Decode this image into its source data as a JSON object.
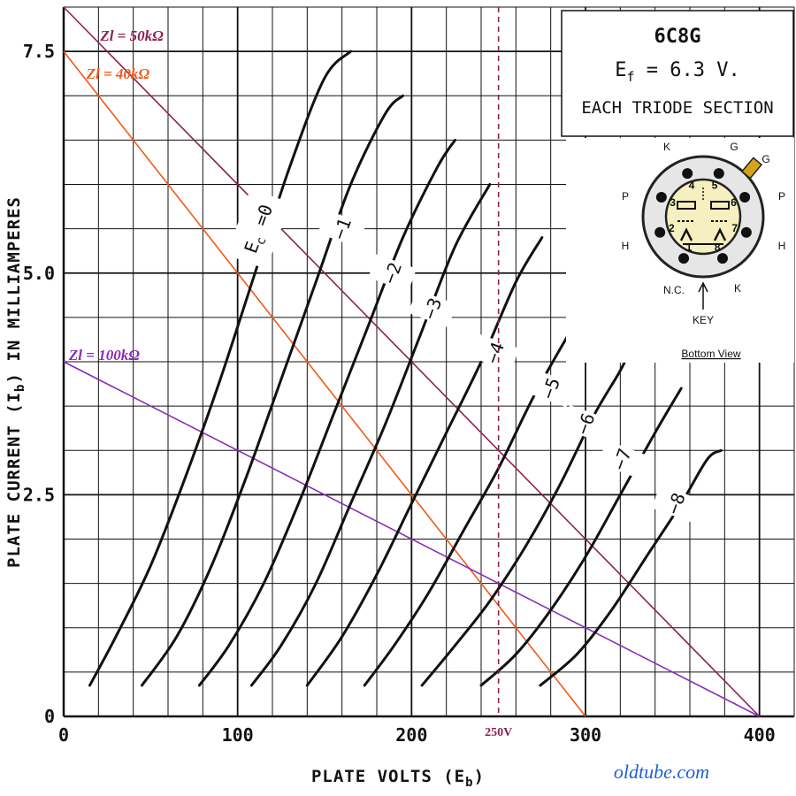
{
  "chart_data": {
    "type": "line",
    "tube": "6C8G",
    "xlabel_main": "PLATE VOLTS (E",
    "xlabel_sub": "b",
    "xlabel_end": ")",
    "ylabel_main": "PLATE CURRENT (I",
    "ylabel_sub": "b",
    "ylabel_end": ") IN MILLIAMPERES",
    "xlim": [
      0,
      420
    ],
    "ylim": [
      0,
      8
    ],
    "x_ticks": [
      "0",
      "100",
      "200",
      "300",
      "400"
    ],
    "x_tick_values": [
      0,
      100,
      200,
      300,
      400
    ],
    "y_ticks": [
      "0",
      "2.5",
      "5.0",
      "7.5"
    ],
    "y_tick_values": [
      0,
      2.5,
      5.0,
      7.5
    ],
    "grid": "on",
    "series": [
      {
        "name": "E_c = 0",
        "x": [
          15,
          30,
          50,
          70,
          90,
          110,
          130,
          150,
          165
        ],
        "y": [
          0.35,
          0.9,
          1.7,
          2.7,
          3.8,
          5.0,
          6.2,
          7.2,
          7.5
        ]
      },
      {
        "name": "-1",
        "x": [
          45,
          65,
          85,
          105,
          125,
          145,
          165,
          185,
          195
        ],
        "y": [
          0.35,
          0.9,
          1.7,
          2.7,
          3.8,
          4.9,
          6.0,
          6.8,
          7.0
        ]
      },
      {
        "name": "-2",
        "x": [
          78,
          95,
          115,
          135,
          155,
          175,
          195,
          215,
          225
        ],
        "y": [
          0.35,
          0.8,
          1.5,
          2.4,
          3.4,
          4.4,
          5.4,
          6.2,
          6.5
        ]
      },
      {
        "name": "-3",
        "x": [
          108,
          125,
          145,
          165,
          185,
          205,
          225,
          245
        ],
        "y": [
          0.35,
          0.8,
          1.5,
          2.4,
          3.3,
          4.3,
          5.3,
          6.0
        ]
      },
      {
        "name": "-4",
        "x": [
          140,
          160,
          180,
          200,
          220,
          240,
          260,
          275
        ],
        "y": [
          0.35,
          0.9,
          1.6,
          2.4,
          3.2,
          4.0,
          4.9,
          5.4
        ]
      },
      {
        "name": "-5",
        "x": [
          173,
          190,
          210,
          230,
          250,
          270,
          290,
          305
        ],
        "y": [
          0.35,
          0.8,
          1.4,
          2.1,
          2.8,
          3.6,
          4.3,
          4.8
        ]
      },
      {
        "name": "-6",
        "x": [
          206,
          225,
          245,
          265,
          285,
          305,
          320,
          330
        ],
        "y": [
          0.35,
          0.8,
          1.3,
          1.9,
          2.6,
          3.4,
          3.9,
          4.3
        ]
      },
      {
        "name": "-7",
        "x": [
          240,
          260,
          280,
          300,
          320,
          340,
          355
        ],
        "y": [
          0.35,
          0.7,
          1.2,
          1.8,
          2.5,
          3.2,
          3.7
        ]
      },
      {
        "name": "-8",
        "x": [
          274,
          295,
          315,
          335,
          355,
          370,
          378
        ],
        "y": [
          0.35,
          0.7,
          1.2,
          1.8,
          2.4,
          2.9,
          3.0
        ]
      }
    ],
    "curve_labels": [
      {
        "text": "E",
        "sub": "c",
        "rest": " =0",
        "x": 112,
        "y": 5.5
      },
      {
        "text": "−1",
        "x": 160,
        "y": 5.5
      },
      {
        "text": "−2",
        "x": 189,
        "y": 5.0
      },
      {
        "text": "−3",
        "x": 212,
        "y": 4.6
      },
      {
        "text": "−4",
        "x": 248,
        "y": 4.1
      },
      {
        "text": "−5",
        "x": 280,
        "y": 3.7
      },
      {
        "text": "−6",
        "x": 300,
        "y": 3.3
      },
      {
        "text": "−7",
        "x": 321,
        "y": 2.9
      },
      {
        "text": "−8",
        "x": 352,
        "y": 2.4
      }
    ],
    "load_lines": [
      {
        "label": "Zl = 50kΩ",
        "color": "#8b2252",
        "x": [
          0,
          400
        ],
        "y": [
          8.0,
          0
        ],
        "label_x": 20,
        "label_y": 7.68
      },
      {
        "label": "Zl = 40kΩ",
        "color": "#f05a1a",
        "x": [
          0,
          300
        ],
        "y": [
          7.5,
          0
        ],
        "label_x": 12,
        "label_y": 7.25
      },
      {
        "label": "Zl = 100kΩ",
        "color": "#8a2bb8",
        "x": [
          0,
          400
        ],
        "y": [
          4.0,
          0
        ],
        "label_x": 2,
        "label_y": 4.08
      }
    ],
    "marker": {
      "label": "250V",
      "x": 250,
      "color": "#8b2252"
    }
  },
  "info_box": {
    "title": "6C8G",
    "filament_prefix": "E",
    "filament_sub": "f",
    "filament_value": " = 6.3 V.",
    "section": "EACH TRIODE SECTION"
  },
  "pinout": {
    "labels": {
      "k_top": "K",
      "g_top": "G",
      "g_cap": "G",
      "p_left": "P",
      "p_right": "P",
      "h_left": "H",
      "h_right": "H",
      "nc": "N.C.",
      "k_bottom": "K",
      "key": "KEY"
    },
    "pins": [
      "1",
      "2",
      "3",
      "4",
      "5",
      "6",
      "7",
      "8"
    ],
    "caption": "Bottom View"
  },
  "watermark": "oldtube.com",
  "colors": {
    "grid": "#111111",
    "curves": "#111111",
    "pinout_fill": "#f6efc0",
    "pinout_ring": "#e6e6e6"
  }
}
